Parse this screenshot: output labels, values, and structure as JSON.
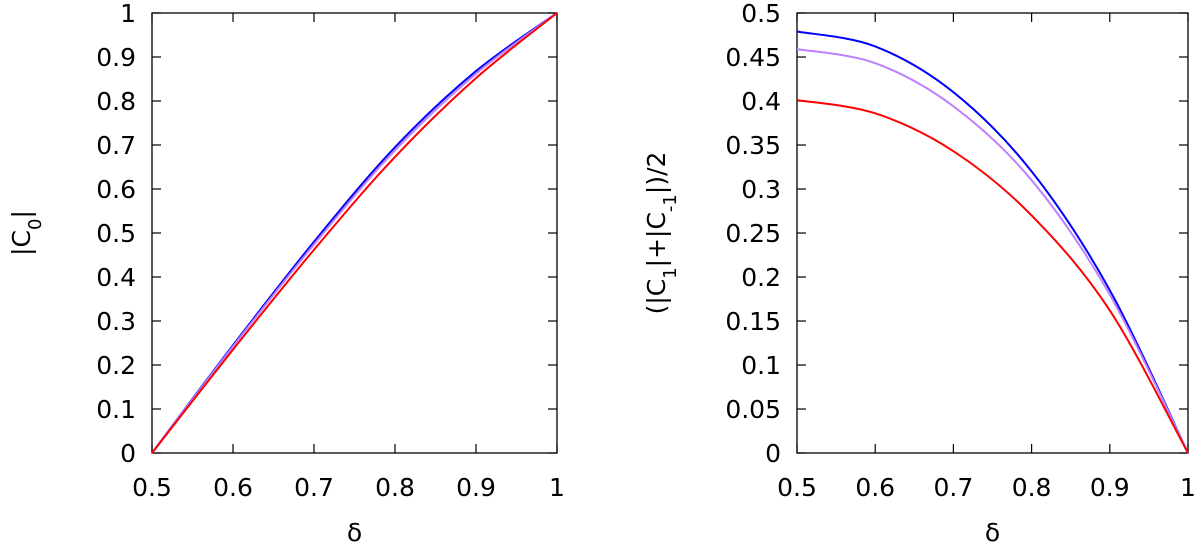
{
  "chart_data": [
    {
      "type": "line",
      "xlabel": "δ",
      "ylabel": "|C0|",
      "xlim": [
        0.5,
        1
      ],
      "ylim": [
        0,
        1
      ],
      "xticks": [
        "0.5",
        "0.6",
        "0.7",
        "0.8",
        "0.9",
        "1"
      ],
      "yticks": [
        "0",
        "0.1",
        "0.2",
        "0.3",
        "0.4",
        "0.5",
        "0.6",
        "0.7",
        "0.8",
        "0.9",
        "1"
      ],
      "grid": false,
      "legend": "none",
      "series": [
        {
          "color": "#0000ff",
          "x": [
            0.5,
            0.6,
            0.7,
            0.8,
            0.9,
            1.0
          ],
          "values": [
            0.0,
            0.245,
            0.48,
            0.695,
            0.868,
            1.0
          ]
        },
        {
          "color": "#bf80ff",
          "x": [
            0.5,
            0.6,
            0.7,
            0.8,
            0.9,
            1.0
          ],
          "values": [
            0.0,
            0.242,
            0.474,
            0.688,
            0.862,
            1.0
          ]
        },
        {
          "color": "#ff0000",
          "x": [
            0.5,
            0.6,
            0.7,
            0.8,
            0.9,
            1.0
          ],
          "values": [
            0.0,
            0.235,
            0.462,
            0.673,
            0.852,
            1.0
          ]
        }
      ]
    },
    {
      "type": "line",
      "xlabel": "δ",
      "ylabel": "(|C1|+|C-1|)/2",
      "xlim": [
        0.5,
        1
      ],
      "ylim": [
        0,
        0.5
      ],
      "xticks": [
        "0.5",
        "0.6",
        "0.7",
        "0.8",
        "0.9",
        "1"
      ],
      "yticks": [
        "0",
        "0.05",
        "0.1",
        "0.15",
        "0.2",
        "0.25",
        "0.3",
        "0.35",
        "0.4",
        "0.45",
        "0.5"
      ],
      "grid": false,
      "legend": "none",
      "series": [
        {
          "color": "#0000ff",
          "x": [
            0.5,
            0.6,
            0.7,
            0.8,
            0.9,
            1.0
          ],
          "values": [
            0.479,
            0.462,
            0.41,
            0.32,
            0.185,
            0.0
          ]
        },
        {
          "color": "#bf80ff",
          "x": [
            0.5,
            0.6,
            0.7,
            0.8,
            0.9,
            1.0
          ],
          "values": [
            0.459,
            0.443,
            0.394,
            0.31,
            0.18,
            0.0
          ]
        },
        {
          "color": "#ff0000",
          "x": [
            0.5,
            0.6,
            0.7,
            0.8,
            0.9,
            1.0
          ],
          "values": [
            0.401,
            0.386,
            0.343,
            0.27,
            0.162,
            0.0
          ]
        }
      ]
    }
  ]
}
